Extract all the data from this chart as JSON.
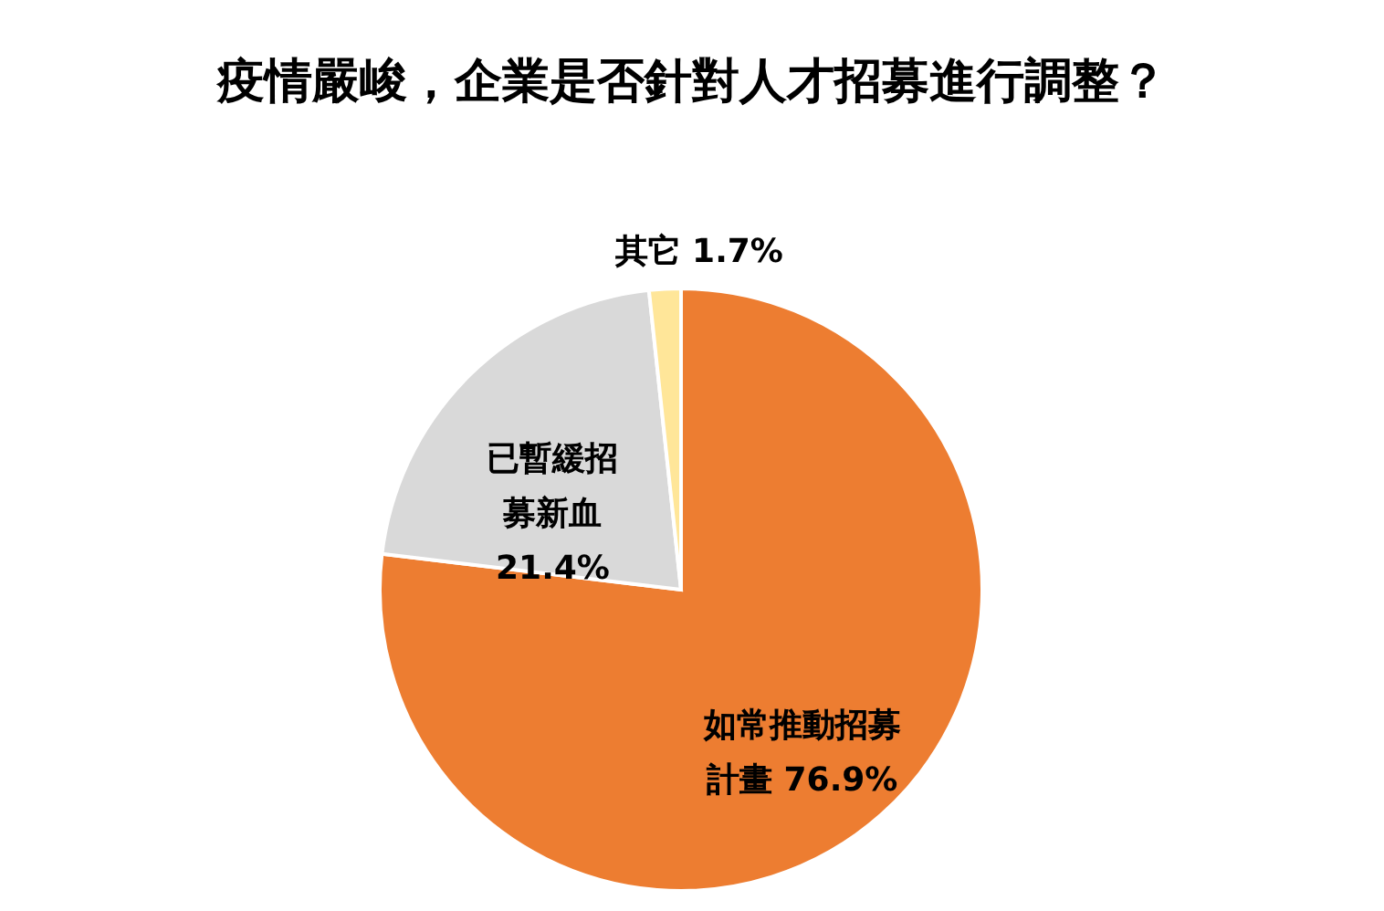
{
  "chart_data": {
    "type": "pie",
    "title": "疫情嚴峻，企業是否針對人才招募進行調整？",
    "categories": [
      "如常推動招募計畫",
      "已暫緩招募新血",
      "其它"
    ],
    "values": [
      76.9,
      21.4,
      1.7
    ],
    "colors": [
      "#ed7d31",
      "#d9d9d9",
      "#ffe699"
    ],
    "value_labels": [
      "76.9%",
      "21.4%",
      "1.7%"
    ]
  }
}
